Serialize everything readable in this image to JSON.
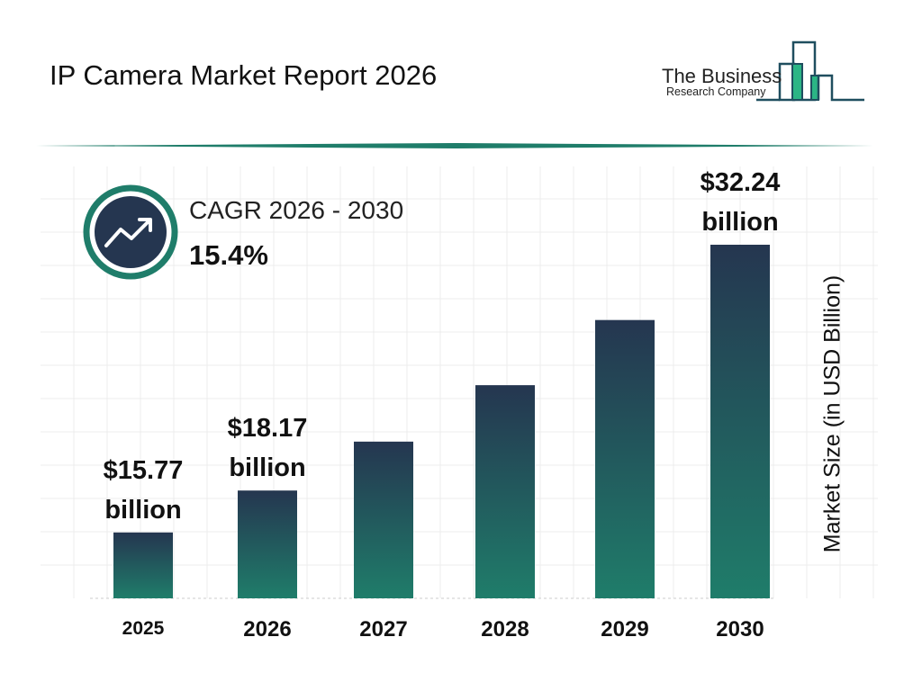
{
  "title": "IP Camera Market Report 2026",
  "logo": {
    "line1": "The Business",
    "line2": "Research Company"
  },
  "cagr": {
    "label": "CAGR 2026 - 2030",
    "value": "15.4%",
    "icon": "trending-up-icon"
  },
  "colors": {
    "bar_top": "#253650",
    "bar_bottom": "#1f7d6a",
    "accent": "#1f7d6a",
    "logo_green": "#2bb585"
  },
  "chart_data": {
    "type": "bar",
    "title": "IP Camera Market Report 2026",
    "categories": [
      "2025",
      "2026",
      "2027",
      "2028",
      "2029",
      "2030"
    ],
    "values": [
      15.77,
      18.17,
      20.97,
      24.2,
      27.93,
      32.24
    ],
    "data_labels": [
      {
        "index": 0,
        "line1": "$15.77",
        "line2": "billion"
      },
      {
        "index": 1,
        "line1": "$18.17",
        "line2": "billion"
      },
      {
        "index": 5,
        "line1": "$32.24",
        "line2": "billion"
      }
    ],
    "xlabel": "",
    "ylabel": "Market Size (in USD Billion)",
    "grid": true,
    "ylim": [
      12,
      33
    ]
  }
}
